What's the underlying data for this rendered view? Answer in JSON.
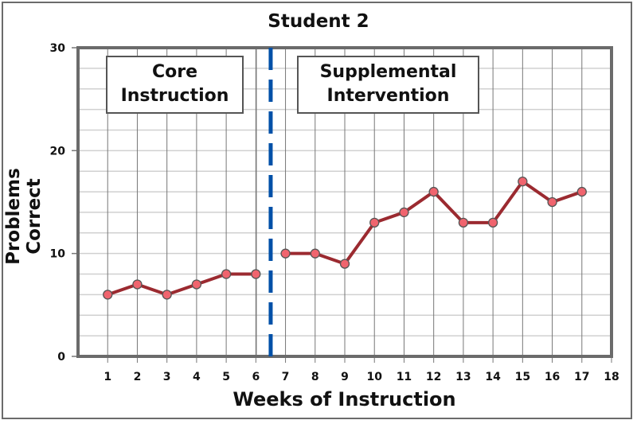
{
  "chart_data": {
    "type": "line",
    "title": "Student 2",
    "xlabel": "Weeks of Instruction",
    "ylabel": "Problems Correct",
    "x_ticks": [
      1,
      2,
      3,
      4,
      5,
      6,
      7,
      8,
      9,
      10,
      11,
      12,
      13,
      14,
      15,
      16,
      17,
      18
    ],
    "y_ticks": [
      0,
      10,
      20,
      30
    ],
    "xlim": [
      0,
      18
    ],
    "ylim": [
      0,
      30
    ],
    "grid": true,
    "series": [
      {
        "name": "Core Instruction",
        "x": [
          1,
          2,
          3,
          4,
          5,
          6
        ],
        "values": [
          6,
          7,
          6,
          7,
          8,
          8
        ],
        "color": "#9b2a30",
        "marker_color": "#f0646e"
      },
      {
        "name": "Supplemental Intervention",
        "x": [
          7,
          8,
          9,
          10,
          11,
          12,
          13,
          14,
          15,
          16,
          17
        ],
        "values": [
          10,
          10,
          9,
          13,
          14,
          16,
          13,
          13,
          17,
          15,
          16
        ],
        "color": "#9b2a30",
        "marker_color": "#f0646e"
      }
    ],
    "phase_change_line": {
      "x": 6.5,
      "style": "dashed",
      "color": "#0050a8"
    },
    "annotations": [
      {
        "text_line1": "Core",
        "text_line2": "Instruction"
      },
      {
        "text_line1": "Supplemental",
        "text_line2": "Intervention"
      }
    ]
  }
}
